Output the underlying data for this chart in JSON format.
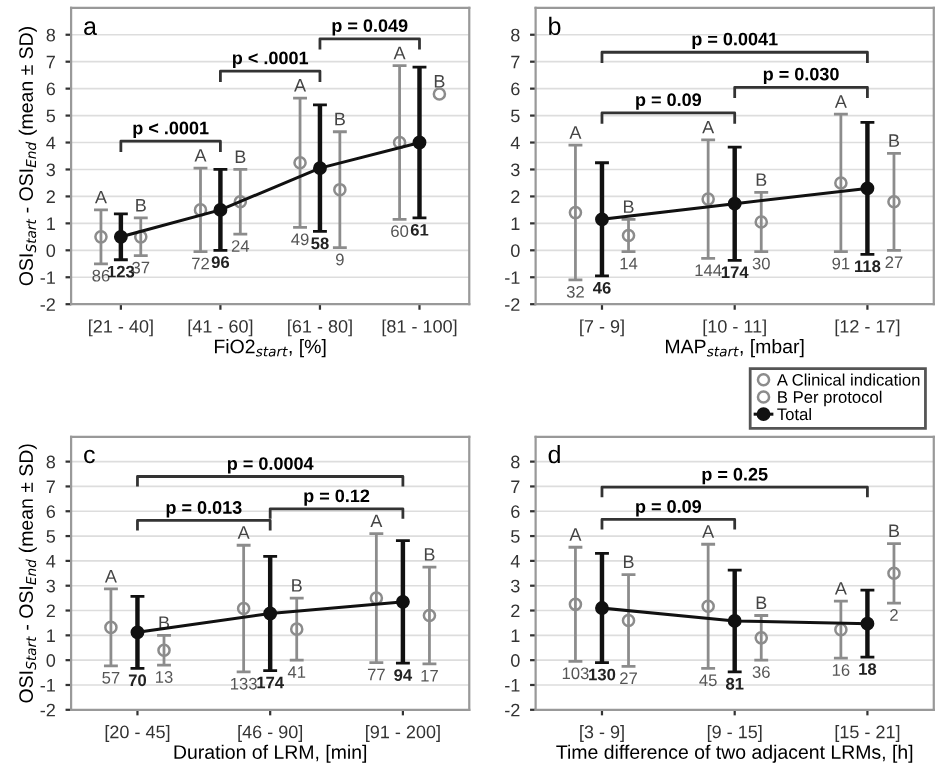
{
  "chart_data": [
    {
      "type": "line",
      "title": "a",
      "xlabel": "FiO2$_{start}$, [%]",
      "ylabel": "OSI$_{Start}$ - OSI$_{End}$ (mean ± SD)",
      "categories": [
        "[21 - 40]",
        "[41 - 60]",
        "[61 - 80]",
        "[81 - 100]"
      ],
      "ylim": [
        -2,
        9
      ],
      "yticks": [
        -2,
        -1,
        0,
        1,
        2,
        3,
        4,
        5,
        6,
        7,
        8
      ],
      "grid": "y",
      "marker": "circle",
      "series": [
        {
          "type": "scatter",
          "color": "#8c8c8c",
          "values": [
            0.5,
            1.5,
            3.25,
            4.0
          ],
          "errors": [
            1.0,
            1.55,
            2.4,
            2.85
          ]
        },
        {
          "type": "scatter",
          "color": "#8c8c8c",
          "values": [
            0.5,
            1.8,
            2.25,
            5.8
          ],
          "errors": [
            0.7,
            1.2,
            2.15,
            null
          ]
        },
        {
          "color": "#111111",
          "values": [
            0.5,
            1.5,
            3.05,
            4.0
          ],
          "errors": [
            0.85,
            1.5,
            2.35,
            2.8
          ]
        }
      ],
      "annotations": [
        "p < .0001",
        "p < .0001",
        "p = 0.049",
        "A",
        "A",
        "A",
        "A",
        "B",
        "B",
        "B",
        "B",
        "86",
        "72",
        "49",
        "60",
        "37",
        "24",
        "9",
        "123",
        "96",
        "58",
        "61"
      ]
    },
    {
      "type": "line",
      "title": "b",
      "xlabel": "MAP$_{start}$, [mbar]",
      "categories": [
        "[7 - 9]",
        "[10 - 11]",
        "[12 - 17]"
      ],
      "ylim": [
        -2,
        9
      ],
      "yticks": [
        -2,
        -1,
        0,
        1,
        2,
        3,
        4,
        5,
        6,
        7,
        8
      ],
      "grid": "y",
      "marker": "circle",
      "series": [
        {
          "type": "scatter",
          "color": "#8c8c8c",
          "values": [
            1.4,
            1.9,
            2.5
          ],
          "errors": [
            2.5,
            2.2,
            2.55
          ]
        },
        {
          "type": "scatter",
          "color": "#8c8c8c",
          "values": [
            0.55,
            1.05,
            1.8
          ],
          "errors": [
            0.6,
            1.1,
            1.8
          ]
        },
        {
          "color": "#111111",
          "values": [
            1.15,
            1.73,
            2.3
          ],
          "errors": [
            2.1,
            2.1,
            2.45
          ]
        }
      ],
      "annotations": [
        "p = 0.09",
        "p = 0.030",
        "p = 0.0041",
        "A",
        "A",
        "A",
        "B",
        "B",
        "B",
        "32",
        "144",
        "91",
        "14",
        "30",
        "27",
        "46",
        "174",
        "118"
      ]
    },
    {
      "type": "line",
      "title": "c",
      "xlabel": "Duration of LRM, [min]",
      "ylabel": "OSI$_{Start}$ - OSI$_{End}$ (mean ± SD)",
      "categories": [
        "[20 - 45]",
        "[46 - 90]",
        "[91 - 200]"
      ],
      "ylim": [
        -2,
        9
      ],
      "yticks": [
        -2,
        -1,
        0,
        1,
        2,
        3,
        4,
        5,
        6,
        7,
        8
      ],
      "grid": "y",
      "marker": "circle",
      "series": [
        {
          "type": "scatter",
          "color": "#8c8c8c",
          "values": [
            1.32,
            2.08,
            2.5
          ],
          "errors": [
            1.55,
            2.55,
            2.6
          ]
        },
        {
          "type": "scatter",
          "color": "#8c8c8c",
          "values": [
            0.4,
            1.25,
            1.8
          ],
          "errors": [
            0.6,
            1.25,
            1.95
          ]
        },
        {
          "color": "#111111",
          "values": [
            1.12,
            1.88,
            2.35
          ],
          "errors": [
            1.45,
            2.3,
            2.47
          ]
        }
      ],
      "annotations": [
        "p = 0.013",
        "p = 0.12",
        "p = 0.0004",
        "A",
        "A",
        "A",
        "B",
        "B",
        "B",
        "57",
        "133",
        "77",
        "13",
        "41",
        "17",
        "70",
        "174",
        "94"
      ]
    },
    {
      "type": "line",
      "title": "d",
      "xlabel": "Time difference of two adjacent LRMs, [h]",
      "categories": [
        "[3 - 9]",
        "[9 - 15]",
        "[15 - 21]"
      ],
      "ylim": [
        -2,
        9
      ],
      "yticks": [
        -2,
        -1,
        0,
        1,
        2,
        3,
        4,
        5,
        6,
        7,
        8
      ],
      "grid": "y",
      "marker": "circle",
      "legend": "top right",
      "series": [
        {
          "name": "A Clinical indication",
          "type": "scatter",
          "color": "#8c8c8c",
          "values": [
            2.25,
            2.17,
            1.23
          ],
          "errors": [
            2.3,
            2.5,
            1.15
          ]
        },
        {
          "name": "B Per protocol",
          "type": "scatter",
          "color": "#8c8c8c",
          "values": [
            1.6,
            0.9,
            3.5
          ],
          "errors": [
            1.85,
            0.9,
            1.2
          ]
        },
        {
          "name": "Total",
          "color": "#111111",
          "values": [
            2.1,
            1.58,
            1.47
          ],
          "errors": [
            2.2,
            2.05,
            1.35
          ]
        }
      ],
      "annotations": [
        "p = 0.09",
        "p = 0.25",
        "A",
        "A",
        "A",
        "B",
        "B",
        "B",
        "103",
        "45",
        "16",
        "27",
        "36",
        "2",
        "130",
        "81",
        "18"
      ]
    }
  ]
}
